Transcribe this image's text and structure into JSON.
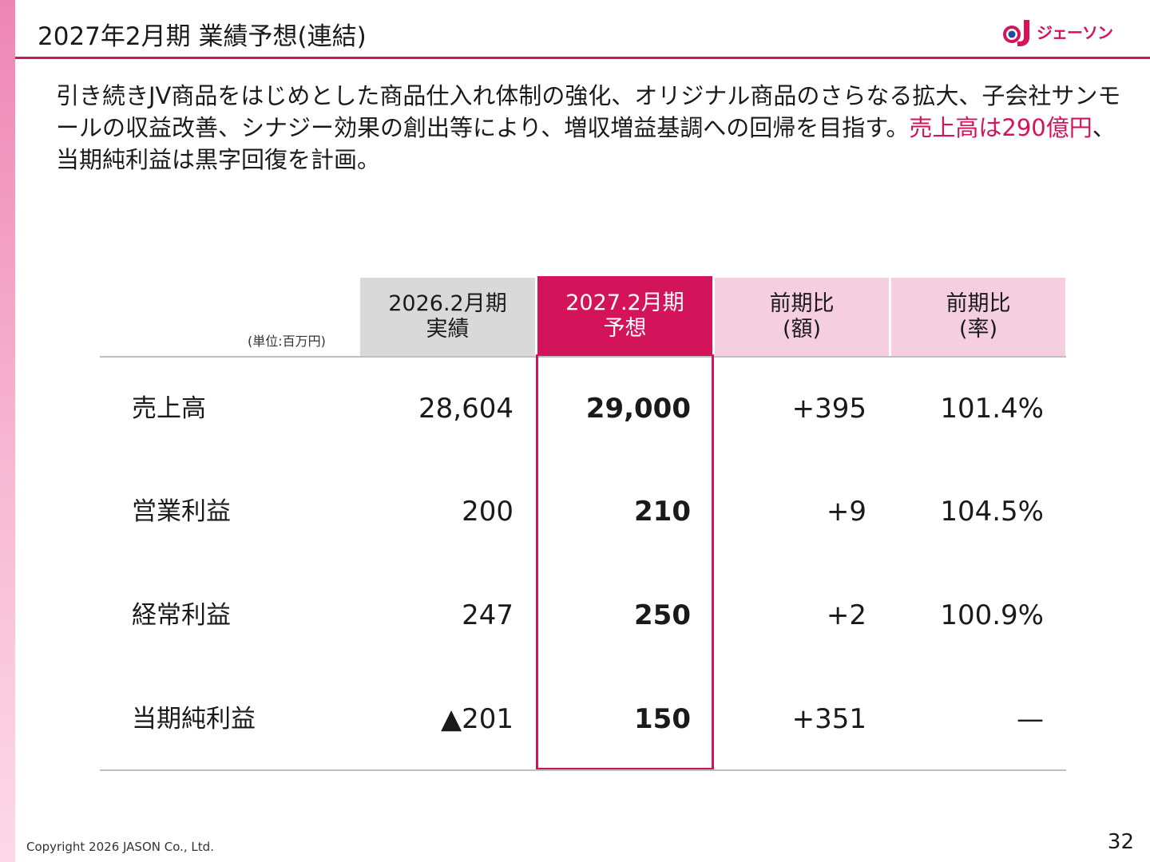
{
  "slide": {
    "title": "2027年2月期 業績予想(連結)",
    "logo_text": "ジェーソン",
    "intro_plain": "引き続きJV商品をはじめとした商品仕入れ体制の強化、オリジナル商品のさらなる拡大、子会社サンモールの収益改善、シナジー効果の創出等により、増収増益基調への回帰を目指す。",
    "intro_highlight": "売上高は290億円",
    "intro_tail": "、当期純利益は黒字回復を計画。",
    "footer": "Copyright 2026 JASON Co., Ltd.",
    "page_number": "32"
  },
  "table": {
    "unit": "(単位:百万円)",
    "headers": [
      {
        "line1": "2026.2月期",
        "line2": "実績"
      },
      {
        "line1": "2027.2月期",
        "line2": "予想"
      },
      {
        "line1": "前期比",
        "line2": "(額)"
      },
      {
        "line1": "前期比",
        "line2": "(率)"
      }
    ],
    "rows": [
      {
        "label": "売上高",
        "prev": "28,604",
        "forecast": "29,000",
        "diff": "+395",
        "rate": "101.4%"
      },
      {
        "label": "営業利益",
        "prev": "200",
        "forecast": "210",
        "diff": "+9",
        "rate": "104.5%"
      },
      {
        "label": "経常利益",
        "prev": "247",
        "forecast": "250",
        "diff": "+2",
        "rate": "100.9%"
      },
      {
        "label": "当期純利益",
        "prev": "▲201",
        "forecast": "150",
        "diff": "+351",
        "rate": "—"
      }
    ]
  },
  "colors": {
    "accent": "#d4145a",
    "header_gray": "#d9d9d9",
    "header_pink": "#f5cfe0"
  }
}
